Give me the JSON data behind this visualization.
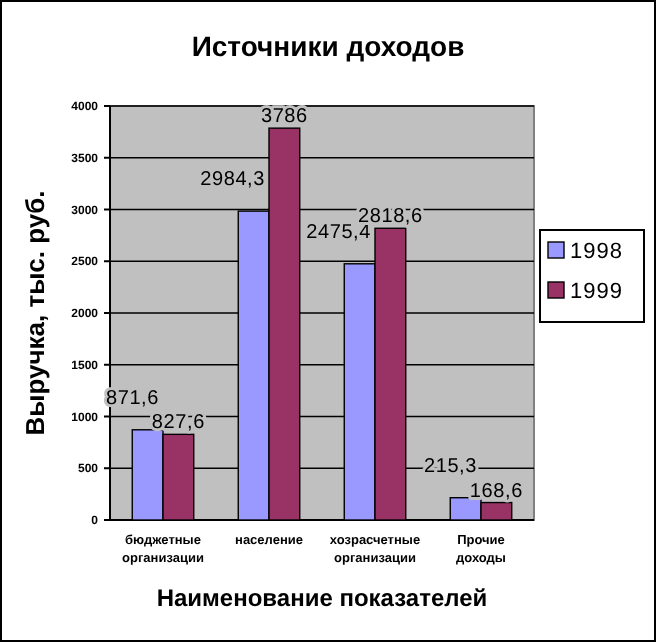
{
  "chart_data": {
    "type": "bar",
    "title": "Источники доходов",
    "xlabel": "Наименование показателей",
    "ylabel": "Выручка, тыс. руб.",
    "categories": [
      "бюджетные организации",
      "население",
      "хозрасчетные организации",
      "Прочие доходы"
    ],
    "series": [
      {
        "name": "1998",
        "color": "#9999ff",
        "values": [
          871.6,
          2984.3,
          2475.4,
          215.3
        ],
        "value_labels": [
          "871,6",
          "2984,3",
          "2475,4",
          "215,3"
        ]
      },
      {
        "name": "1999",
        "color": "#993366",
        "values": [
          827.6,
          3786,
          2818.6,
          168.6
        ],
        "value_labels": [
          "827,6",
          "3786",
          "2818,6",
          "168,6"
        ]
      }
    ],
    "ylim": [
      0,
      4000
    ],
    "yticks": [
      0,
      500,
      1000,
      1500,
      2000,
      2500,
      3000,
      3500,
      4000
    ],
    "grid": "y",
    "legend": "right"
  }
}
